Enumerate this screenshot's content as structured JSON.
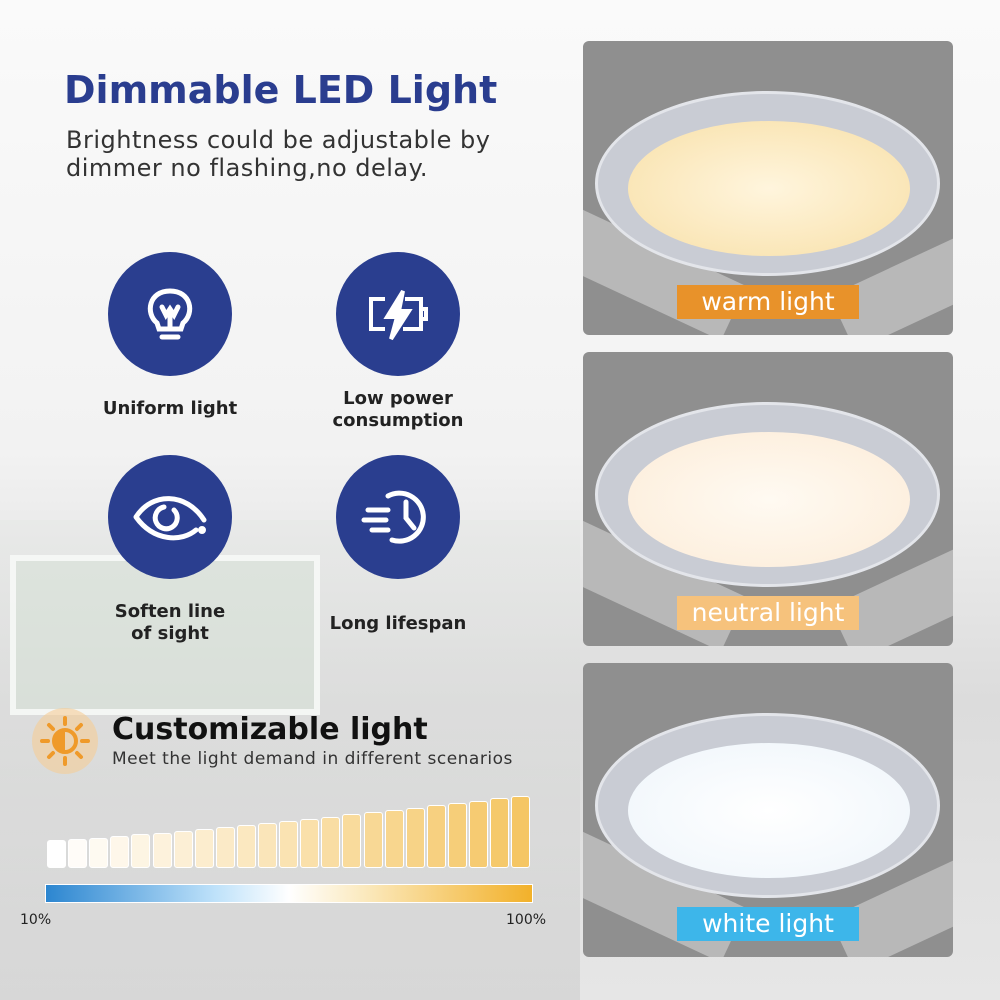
{
  "header": {
    "title": "Dimmable LED Light",
    "subtitle_line1": "Brightness could be adjustable by",
    "subtitle_line2": "dimmer no flashing,no delay."
  },
  "features": [
    {
      "label": "Uniform light",
      "icon": "lightbulb-icon"
    },
    {
      "label": "Low power consumption",
      "icon": "battery-charging-icon"
    },
    {
      "label": "Soften line of sight",
      "icon": "eye-icon"
    },
    {
      "label": "Long lifespan",
      "icon": "clock-speed-icon"
    }
  ],
  "customizable": {
    "title": "Customizable light",
    "subtitle": "Meet the light demand in different scenarios",
    "icon": "sun-half-icon",
    "bar_count": 23,
    "scale_min": "10%",
    "scale_max": "100%"
  },
  "panels": [
    {
      "label": "warm light",
      "label_color": "#e8922a",
      "light_color": "#fbe7bd"
    },
    {
      "label": "neutral light",
      "label_color": "#f6c27c",
      "light_color": "#fdf1e2"
    },
    {
      "label": "white light",
      "label_color": "#3db6ea",
      "light_color": "#f7fbfe"
    }
  ],
  "colors": {
    "brand_blue": "#2a3e8f"
  }
}
